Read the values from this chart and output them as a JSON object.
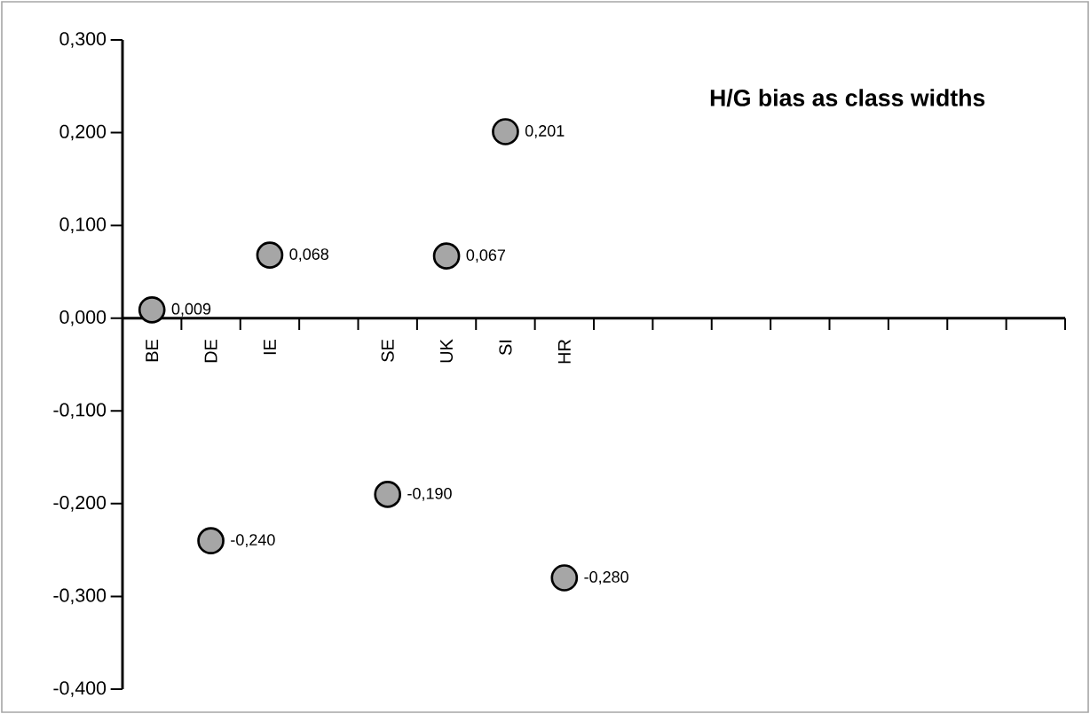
{
  "chart_data": {
    "type": "scatter",
    "title": "H/G bias as class widths",
    "categories": [
      "BE",
      "DE",
      "IE",
      null,
      "SE",
      "UK",
      "SI",
      "HR",
      null,
      null,
      null,
      null,
      null,
      null,
      null,
      null
    ],
    "values": [
      0.009,
      -0.24,
      0.068,
      null,
      -0.19,
      0.067,
      0.201,
      -0.28,
      null,
      null,
      null,
      null,
      null,
      null,
      null,
      null
    ],
    "value_labels": [
      "0,009",
      "-0,240",
      "0,068",
      null,
      "-0,190",
      "0,067",
      "0,201",
      "-0,280",
      null,
      null,
      null,
      null,
      null,
      null,
      null,
      null
    ],
    "color": "#a6a6a6",
    "marker": "circle",
    "ylim": [
      -0.4,
      0.3
    ],
    "yticks": [
      {
        "value": -0.4,
        "label": "-0,400"
      },
      {
        "value": -0.3,
        "label": "-0,300"
      },
      {
        "value": -0.2,
        "label": "-0,200"
      },
      {
        "value": -0.1,
        "label": "-0,100"
      },
      {
        "value": 0,
        "label": "0,000"
      },
      {
        "value": 0.1,
        "label": "0,100"
      },
      {
        "value": 0.2,
        "label": "0,200"
      },
      {
        "value": 0.3,
        "label": "0,300"
      }
    ]
  }
}
